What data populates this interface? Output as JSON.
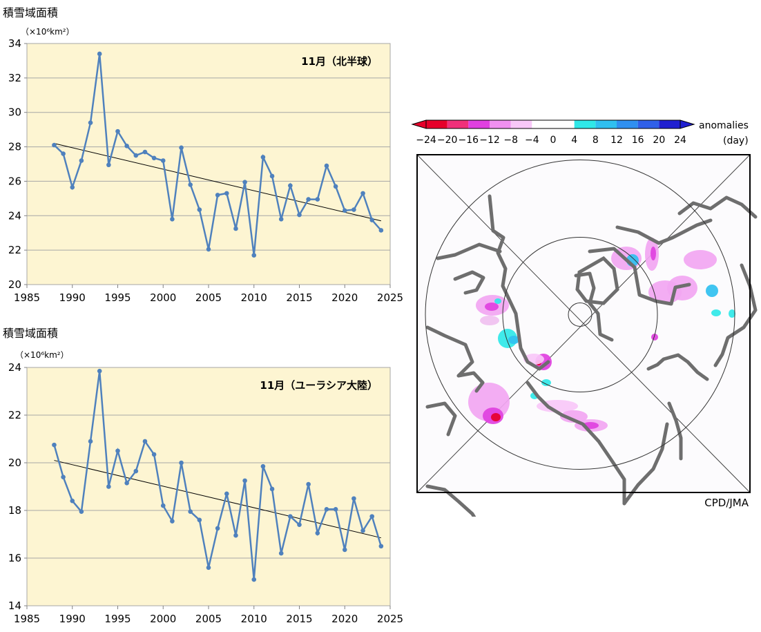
{
  "charts": {
    "top": {
      "ylabel": "積雪域面積",
      "unit": "（×10⁶km²）",
      "legend": "11月（北半球）"
    },
    "bottom": {
      "ylabel": "積雪域面積",
      "unit": "（×10⁶km²）",
      "legend": "11月（ユーラシア大陸）"
    }
  },
  "map": {
    "legend_label_1": "anomalies",
    "legend_label_2": "(day)",
    "colorbar_ticks": [
      "−24",
      "−20",
      "−16",
      "−12",
      "−8",
      "−4",
      "0",
      "4",
      "8",
      "12",
      "16",
      "20",
      "24"
    ],
    "colorbar_colors": [
      "#e6002a",
      "#f0307a",
      "#e040e0",
      "#f090f0",
      "#f8c8f8",
      "#ffffff",
      "#ffffff",
      "#30e8e8",
      "#30c0f0",
      "#3090f0",
      "#3060e8",
      "#2020d0"
    ],
    "credit": "CPD/JMA"
  },
  "chart_data": [
    {
      "type": "line",
      "title": "11月（北半球）",
      "ylabel": "積雪域面積",
      "yunit": "×10⁶km²",
      "xlim": [
        1985,
        2025
      ],
      "ylim": [
        20,
        34
      ],
      "xticks": [
        1985,
        1990,
        1995,
        2000,
        2005,
        2010,
        2015,
        2020,
        2025
      ],
      "yticks": [
        20,
        22,
        24,
        26,
        28,
        30,
        32,
        34
      ],
      "grid": true,
      "color": "#4f81bd",
      "x": [
        1988,
        1989,
        1990,
        1991,
        1992,
        1993,
        1994,
        1995,
        1996,
        1997,
        1998,
        1999,
        2000,
        2001,
        2002,
        2003,
        2004,
        2005,
        2006,
        2007,
        2008,
        2009,
        2010,
        2011,
        2012,
        2013,
        2014,
        2015,
        2016,
        2017,
        2018,
        2019,
        2020,
        2021,
        2022,
        2023,
        2024
      ],
      "values": [
        28.1,
        27.6,
        25.65,
        27.2,
        29.4,
        33.4,
        26.95,
        28.9,
        28.05,
        27.5,
        27.7,
        27.35,
        27.2,
        23.8,
        27.95,
        25.8,
        24.35,
        22.05,
        25.2,
        25.3,
        23.25,
        25.95,
        21.7,
        27.4,
        26.3,
        23.8,
        25.75,
        24.05,
        24.95,
        24.95,
        26.9,
        25.7,
        24.3,
        24.35,
        25.3,
        23.75,
        23.15
      ],
      "trend": {
        "x": [
          1988,
          2024
        ],
        "y": [
          28.2,
          23.7
        ]
      }
    },
    {
      "type": "line",
      "title": "11月（ユーラシア大陸）",
      "ylabel": "積雪域面積",
      "yunit": "×10⁶km²",
      "xlim": [
        1985,
        2025
      ],
      "ylim": [
        14,
        24
      ],
      "xticks": [
        1985,
        1990,
        1995,
        2000,
        2005,
        2010,
        2015,
        2020,
        2025
      ],
      "yticks": [
        14,
        16,
        18,
        20,
        22,
        24
      ],
      "grid": true,
      "color": "#4f81bd",
      "x": [
        1988,
        1989,
        1990,
        1991,
        1992,
        1993,
        1994,
        1995,
        1996,
        1997,
        1998,
        1999,
        2000,
        2001,
        2002,
        2003,
        2004,
        2005,
        2006,
        2007,
        2008,
        2009,
        2010,
        2011,
        2012,
        2013,
        2014,
        2015,
        2016,
        2017,
        2018,
        2019,
        2020,
        2021,
        2022,
        2023,
        2024
      ],
      "values": [
        20.75,
        19.4,
        18.4,
        17.95,
        20.9,
        23.85,
        19.0,
        20.5,
        19.15,
        19.65,
        20.9,
        20.35,
        18.2,
        17.55,
        20.0,
        17.95,
        17.6,
        15.6,
        17.25,
        18.7,
        16.95,
        19.25,
        15.1,
        19.85,
        18.9,
        16.2,
        17.75,
        17.4,
        19.1,
        17.05,
        18.05,
        18.05,
        16.35,
        18.5,
        17.15,
        17.75,
        16.5
      ],
      "trend": {
        "x": [
          1988,
          2024
        ],
        "y": [
          20.1,
          16.85
        ]
      }
    }
  ]
}
